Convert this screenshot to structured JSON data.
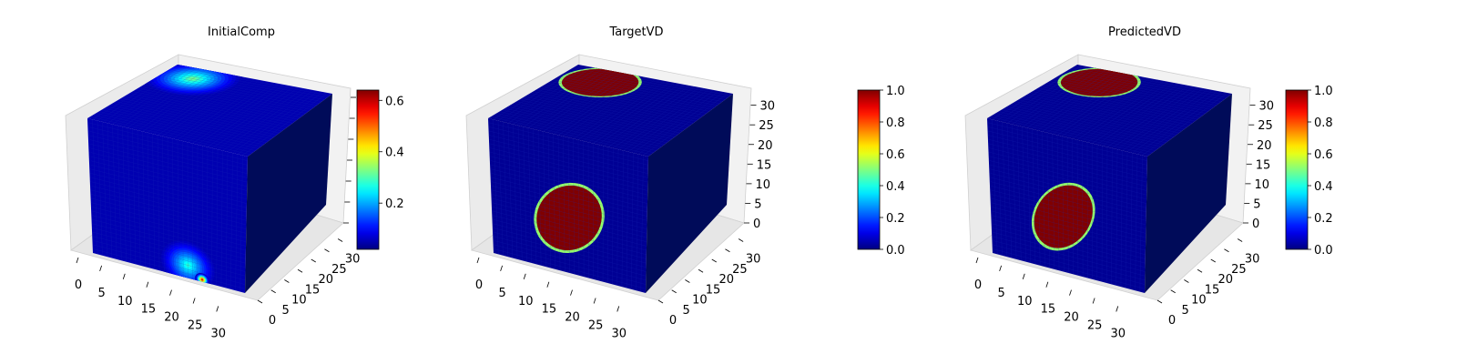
{
  "chart_data": [
    {
      "type": "heatmap",
      "subtype": "3d-voxel",
      "title": "InitialComp",
      "colormap": "jet",
      "axes": {
        "x": {
          "ticks": [
            0,
            5,
            10,
            15,
            20,
            25,
            30
          ],
          "range": [
            0,
            32
          ]
        },
        "y": {
          "ticks": [
            0,
            5,
            10,
            15,
            20,
            25,
            30
          ],
          "range": [
            0,
            32
          ]
        },
        "z": {
          "ticks": [],
          "range": [
            0,
            32
          ]
        }
      },
      "colorbar": {
        "range": [
          0.02,
          0.64
        ],
        "ticks": [
          0.2,
          0.4,
          0.6
        ],
        "tick_labels": [
          "0.2",
          "0.4",
          "0.6"
        ]
      },
      "features": [
        {
          "face": "top",
          "x": 6,
          "y": 27,
          "radius": 9,
          "value": 0.35
        },
        {
          "face": "front",
          "x": 20,
          "z": 3,
          "radius": 6,
          "value": 0.3
        },
        {
          "face": "front",
          "x": 23,
          "z": 0.5,
          "radius": 1.5,
          "value": 0.64
        }
      ],
      "background_value": 0.05
    },
    {
      "type": "heatmap",
      "subtype": "3d-voxel",
      "title": "TargetVD",
      "colormap": "jet",
      "axes": {
        "x": {
          "ticks": [
            0,
            5,
            10,
            15,
            20,
            25,
            30
          ],
          "range": [
            0,
            32
          ]
        },
        "y": {
          "ticks": [
            0,
            5,
            10,
            15,
            20,
            25,
            30
          ],
          "range": [
            0,
            32
          ]
        },
        "z": {
          "ticks": [
            0,
            5,
            10,
            15,
            20,
            25,
            30
          ],
          "range": [
            0,
            32
          ]
        }
      },
      "colorbar": {
        "range": [
          0.0,
          1.0
        ],
        "ticks": [
          0.0,
          0.2,
          0.4,
          0.6,
          0.8,
          1.0
        ],
        "tick_labels": [
          "0.0",
          "0.2",
          "0.4",
          "0.6",
          "0.8",
          "1.0"
        ]
      },
      "features": [
        {
          "face": "top",
          "x": 8,
          "y": 26,
          "radius": 8,
          "value": 1.0
        },
        {
          "face": "front",
          "x": 16,
          "z": 13,
          "rx": 10,
          "rz": 7,
          "rotation": 60,
          "value": 1.0
        }
      ],
      "background_value": 0.02
    },
    {
      "type": "heatmap",
      "subtype": "3d-voxel",
      "title": "PredictedVD",
      "colormap": "jet",
      "axes": {
        "x": {
          "ticks": [
            0,
            5,
            10,
            15,
            20,
            25,
            30
          ],
          "range": [
            0,
            32
          ]
        },
        "y": {
          "ticks": [
            0,
            5,
            10,
            15,
            20,
            25,
            30
          ],
          "range": [
            0,
            32
          ]
        },
        "z": {
          "ticks": [
            0,
            5,
            10,
            15,
            20,
            25,
            30
          ],
          "range": [
            0,
            32
          ]
        }
      },
      "colorbar": {
        "range": [
          0.0,
          1.0
        ],
        "ticks": [
          0.0,
          0.2,
          0.4,
          0.6,
          0.8,
          1.0
        ],
        "tick_labels": [
          "0.0",
          "0.2",
          "0.4",
          "0.6",
          "0.8",
          "1.0"
        ]
      },
      "features": [
        {
          "face": "top",
          "x": 8,
          "y": 26,
          "radius": 8,
          "value": 1.0
        },
        {
          "face": "front",
          "x": 15,
          "z": 13,
          "rx": 10,
          "rz": 6,
          "rotation": 62,
          "value": 1.0
        }
      ],
      "background_value": 0.02
    }
  ]
}
